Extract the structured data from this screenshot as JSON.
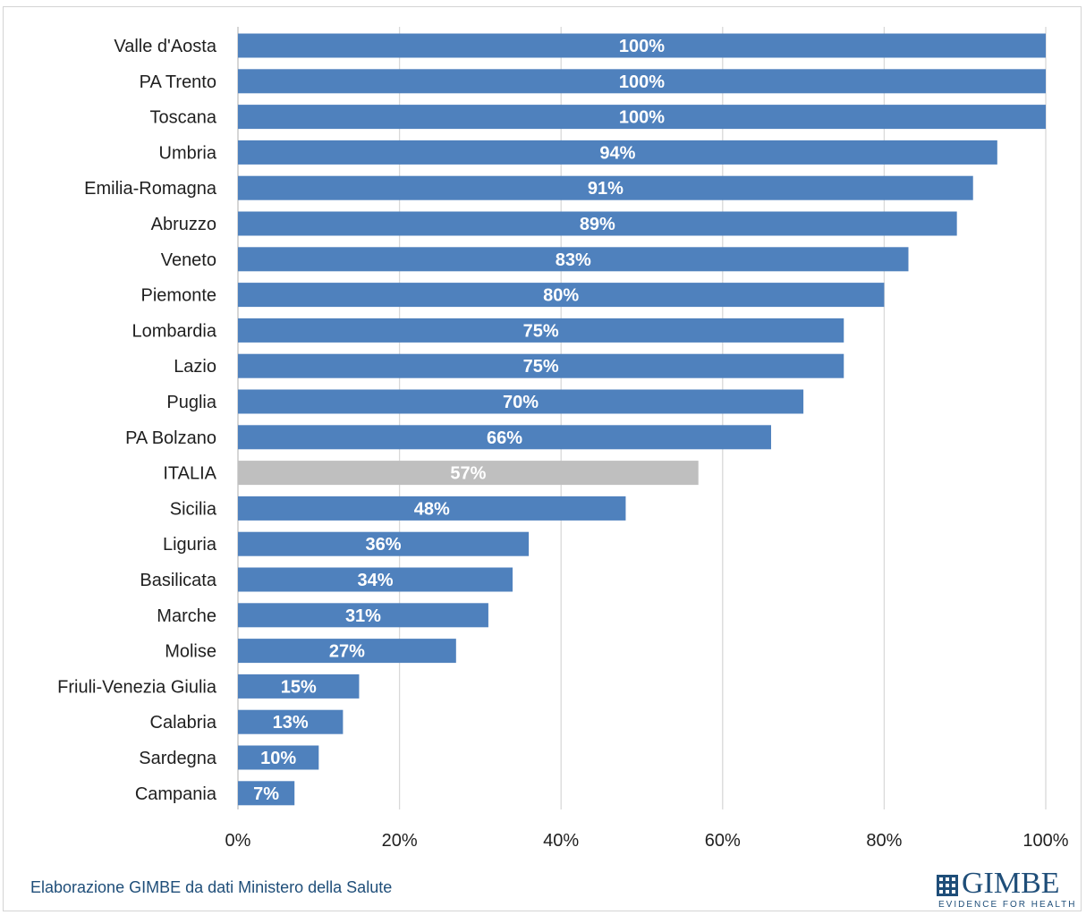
{
  "chart_data": {
    "type": "bar",
    "orientation": "horizontal",
    "categories": [
      "Valle d'Aosta",
      "PA Trento",
      "Toscana",
      "Umbria",
      "Emilia-Romagna",
      "Abruzzo",
      "Veneto",
      "Piemonte",
      "Lombardia",
      "Lazio",
      "Puglia",
      "PA Bolzano",
      "ITALIA",
      "Sicilia",
      "Liguria",
      "Basilicata",
      "Marche",
      "Molise",
      "Friuli-Venezia Giulia",
      "Calabria",
      "Sardegna",
      "Campania"
    ],
    "values": [
      100,
      100,
      100,
      94,
      91,
      89,
      83,
      80,
      75,
      75,
      70,
      66,
      57,
      48,
      36,
      34,
      31,
      27,
      15,
      13,
      10,
      7
    ],
    "data_labels": [
      "100%",
      "100%",
      "100%",
      "94%",
      "91%",
      "89%",
      "83%",
      "80%",
      "75%",
      "75%",
      "70%",
      "66%",
      "57%",
      "48%",
      "36%",
      "34%",
      "31%",
      "27%",
      "15%",
      "13%",
      "10%",
      "7%"
    ],
    "xlim": [
      0,
      100
    ],
    "x_ticks": [
      0,
      20,
      40,
      60,
      80,
      100
    ],
    "x_tick_labels": [
      "0%",
      "20%",
      "40%",
      "60%",
      "80%",
      "100%"
    ],
    "grid": "vertical",
    "legend": "none",
    "colors": {
      "bar": "#4f81bd",
      "highlight": "#bfbfbf",
      "highlight_category": "ITALIA"
    }
  },
  "footer": {
    "source": "Elaborazione GIMBE da dati Ministero della Salute",
    "logo_word": "GIMBE",
    "logo_tagline": "EVIDENCE FOR HEALTH"
  }
}
